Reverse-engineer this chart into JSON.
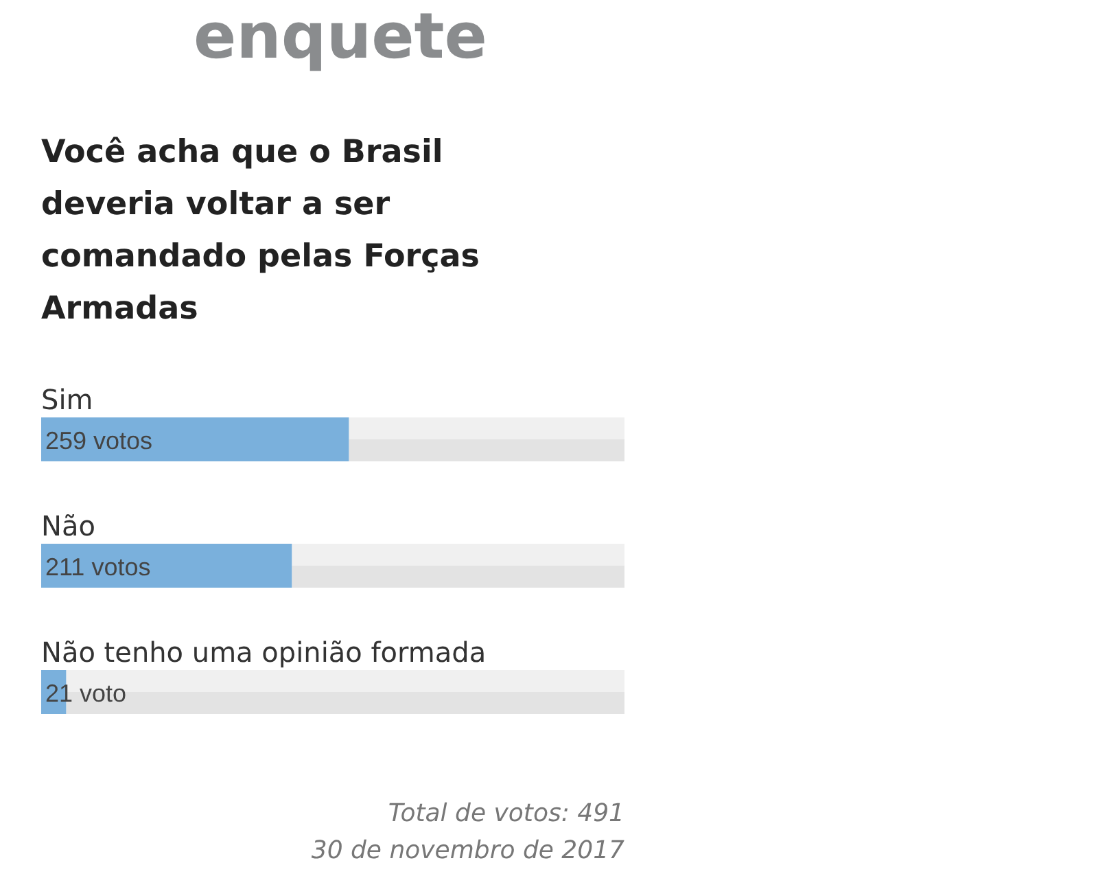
{
  "chart_data": {
    "type": "bar",
    "orientation": "horizontal",
    "title": "enquete",
    "subtitle": "Você acha que o Brasil deveria voltar a ser comandado pelas Forças Armadas",
    "categories": [
      "Sim",
      "Não",
      "Não tenho uma opinião formada"
    ],
    "values": [
      259,
      211,
      21
    ],
    "value_labels": [
      "259 votos",
      "211 votos",
      "21 voto"
    ],
    "color": "#7ab0dc",
    "xlim": [
      0,
      491
    ],
    "annotations": [
      "Total de votos: 491",
      "30 de novembro de 2017"
    ]
  }
}
